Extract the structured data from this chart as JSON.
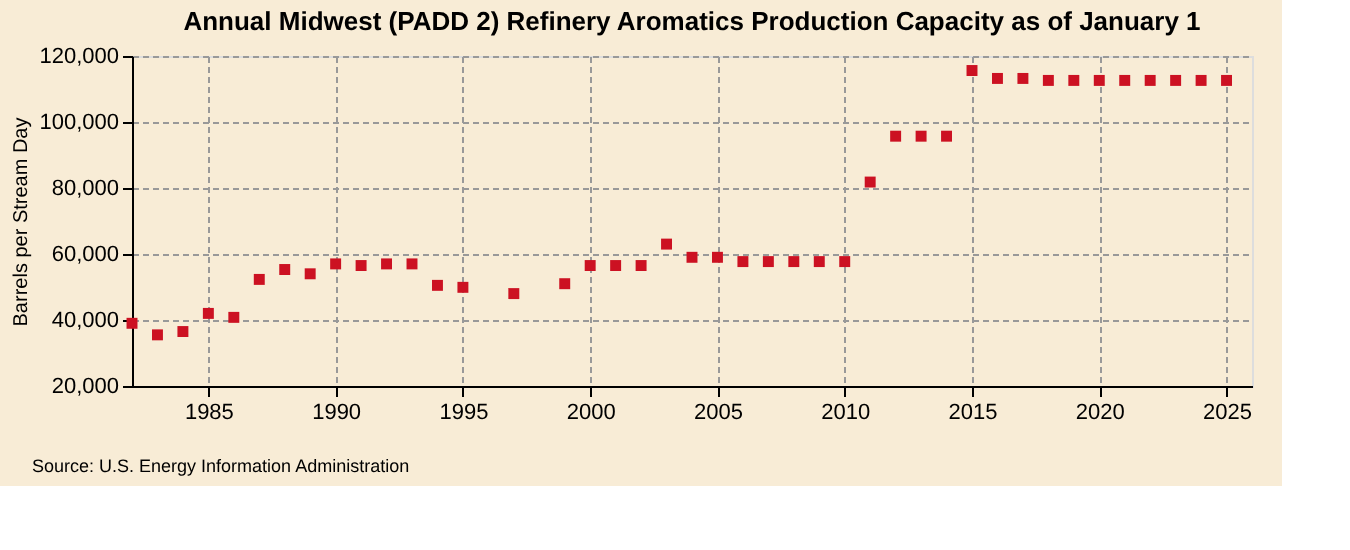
{
  "chart_data": {
    "type": "scatter",
    "title": "Annual Midwest (PADD 2) Refinery Aromatics Production Capacity as of January 1",
    "ylabel": "Barrels per Stream Day",
    "x": [
      1982,
      1983,
      1984,
      1985,
      1986,
      1987,
      1988,
      1989,
      1990,
      1991,
      1992,
      1993,
      1994,
      1995,
      1997,
      1999,
      2000,
      2001,
      2002,
      2003,
      2004,
      2005,
      2006,
      2007,
      2008,
      2009,
      2010,
      2011,
      2012,
      2013,
      2014,
      2015,
      2016,
      2017,
      2018,
      2019,
      2020,
      2021,
      2022,
      2023,
      2024,
      2025
    ],
    "series": [
      {
        "color": "#cc1122",
        "values": [
          39000,
          35500,
          36500,
          42000,
          40800,
          52300,
          55300,
          54000,
          57000,
          56500,
          57000,
          57000,
          50500,
          49900,
          48000,
          51000,
          56500,
          56500,
          56500,
          63000,
          59000,
          59000,
          57700,
          57700,
          57700,
          57700,
          57700,
          81800,
          95700,
          95700,
          95700,
          115600,
          113200,
          113200,
          112600,
          112600,
          112600,
          112600,
          112600,
          112600,
          112600,
          112600
        ]
      }
    ],
    "xlim": [
      1982,
      2026
    ],
    "xticks": [
      1985,
      1990,
      1995,
      2000,
      2005,
      2010,
      2015,
      2020,
      2025
    ],
    "ylim": [
      20000,
      120000
    ],
    "yticks": [
      {
        "value": 20000,
        "label": "20,000"
      },
      {
        "value": 40000,
        "label": "40,000"
      },
      {
        "value": 60000,
        "label": "60,000"
      },
      {
        "value": 80000,
        "label": "80,000"
      },
      {
        "value": 100000,
        "label": "100,000"
      },
      {
        "value": 120000,
        "label": "120,000"
      }
    ],
    "grid": true,
    "marker": "square",
    "annotations": [
      "Source: U.S. Energy Information Administration"
    ]
  }
}
